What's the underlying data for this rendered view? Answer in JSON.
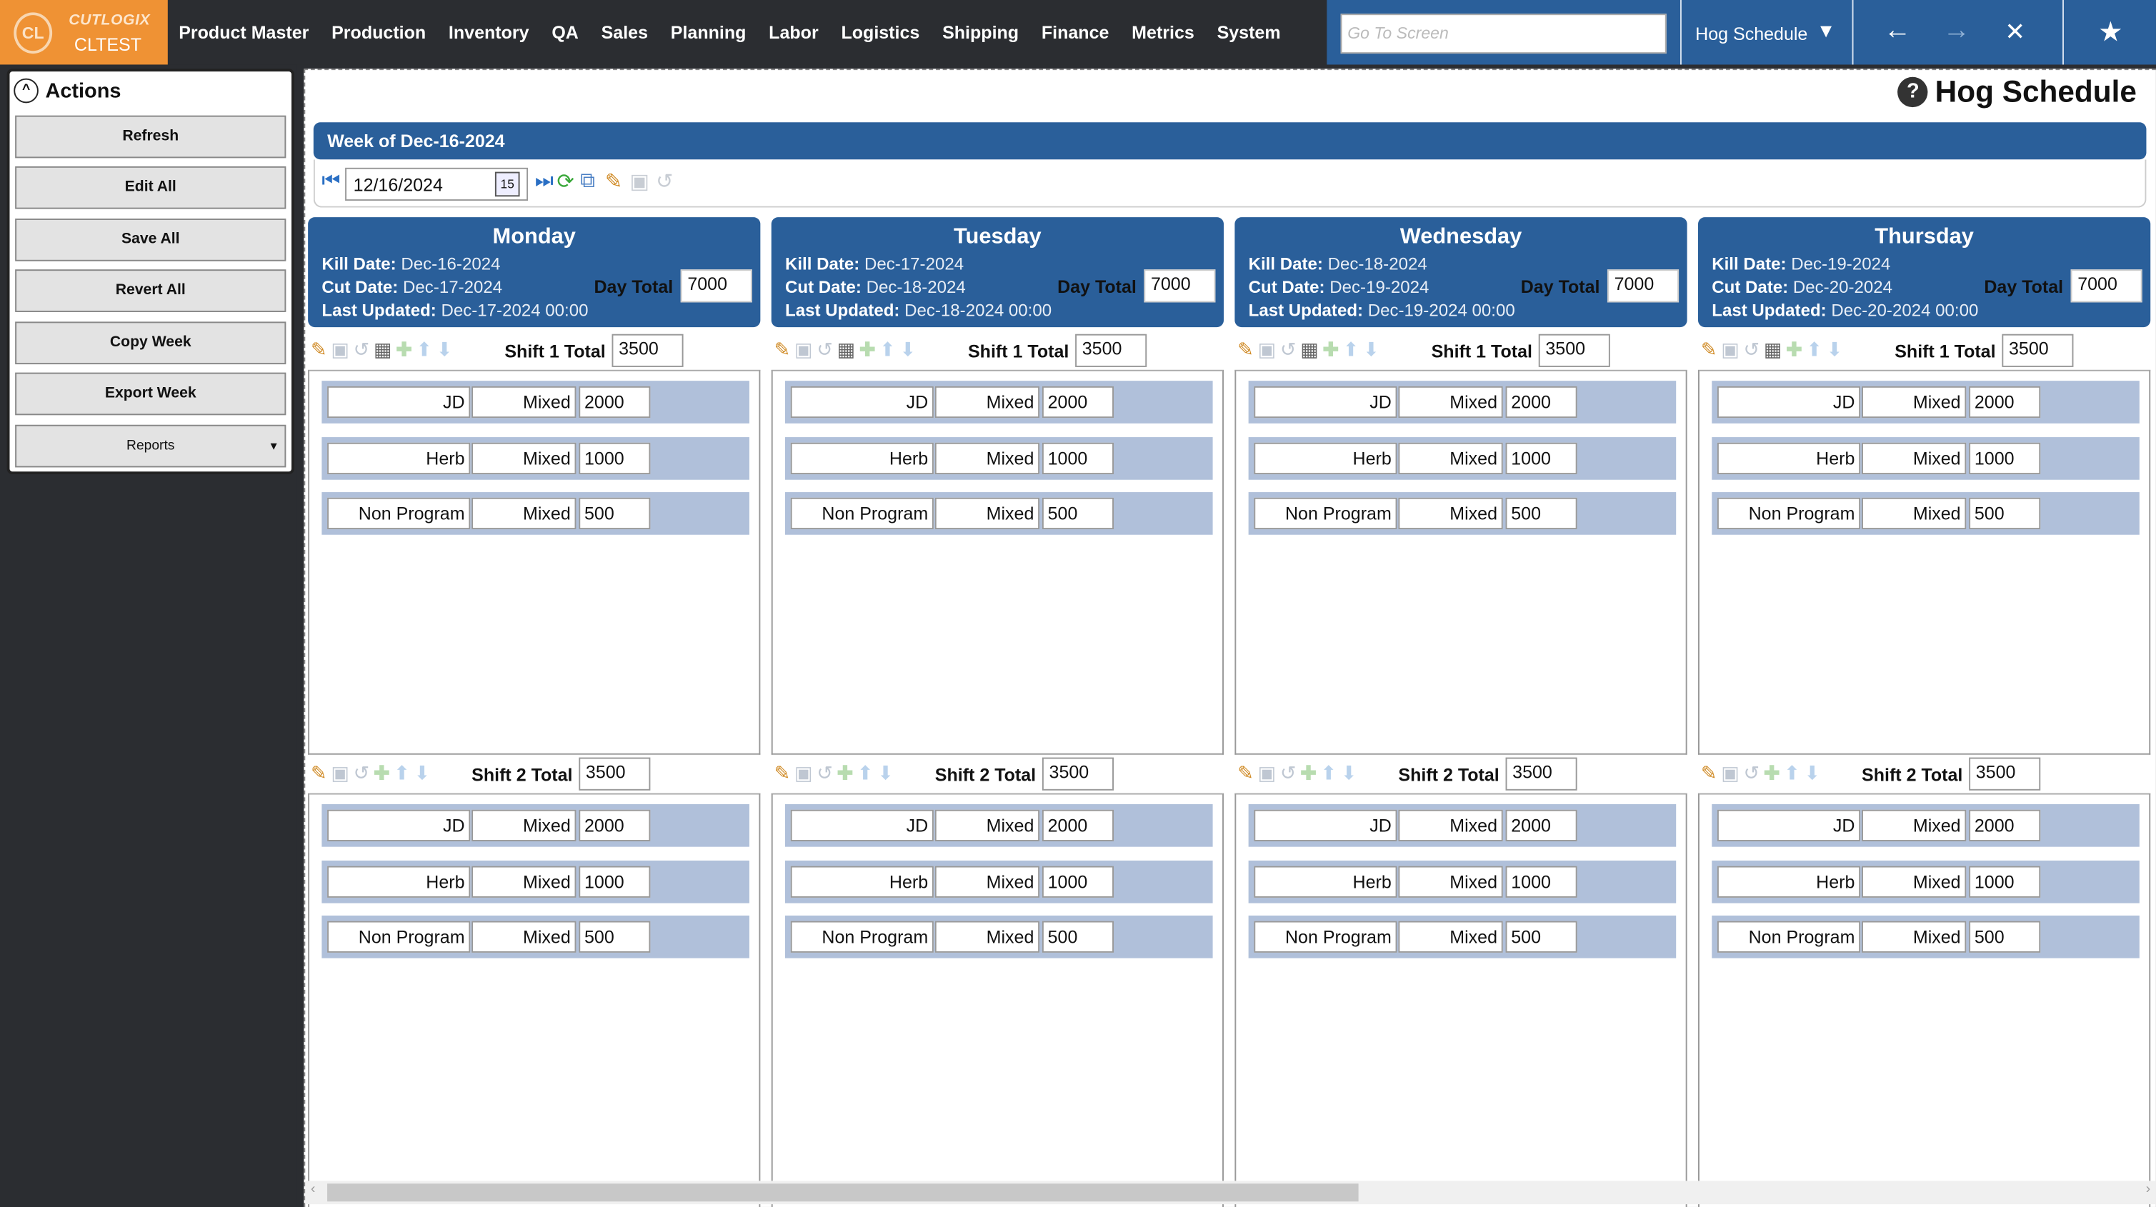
{
  "app": {
    "brand": "CUTLOGIX",
    "environment": "CLTEST"
  },
  "nav": [
    "Product Master",
    "Production",
    "Inventory",
    "QA",
    "Sales",
    "Planning",
    "Labor",
    "Logistics",
    "Shipping",
    "Finance",
    "Metrics",
    "System"
  ],
  "topbar": {
    "goto_placeholder": "Go To Screen",
    "current_screen": "Hog Schedule"
  },
  "sidebar": {
    "title": "Actions",
    "buttons": [
      "Refresh",
      "Edit All",
      "Save All",
      "Revert All",
      "Copy Week",
      "Export Week"
    ],
    "reports_label": "Reports"
  },
  "page": {
    "title": "Hog Schedule",
    "week_label": "Week of Dec-16-2024",
    "date_value": "12/16/2024",
    "calendar_day": "15"
  },
  "labels": {
    "kill": "Kill Date:",
    "cut": "Cut Date:",
    "updated": "Last Updated:",
    "day_total": "Day Total"
  },
  "colors": {
    "brand_orange": "#ef9234",
    "header_blue": "#2a5f9a",
    "row_blue": "#b0c0da",
    "topbar_dark": "#2b2d31"
  },
  "days": [
    {
      "name": "Monday",
      "kill": "Dec-16-2024",
      "cut": "Dec-17-2024",
      "updated": "Dec-17-2024 00:00",
      "day_total": "7000",
      "shifts": [
        {
          "label": "Shift 1 Total",
          "total": "3500",
          "rows": [
            [
              "JD",
              "Mixed",
              "2000"
            ],
            [
              "Herb",
              "Mixed",
              "1000"
            ],
            [
              "Non Program",
              "Mixed",
              "500"
            ]
          ]
        },
        {
          "label": "Shift 2 Total",
          "total": "3500",
          "rows": [
            [
              "JD",
              "Mixed",
              "2000"
            ],
            [
              "Herb",
              "Mixed",
              "1000"
            ],
            [
              "Non Program",
              "Mixed",
              "500"
            ]
          ]
        }
      ]
    },
    {
      "name": "Tuesday",
      "kill": "Dec-17-2024",
      "cut": "Dec-18-2024",
      "updated": "Dec-18-2024 00:00",
      "day_total": "7000",
      "shifts": [
        {
          "label": "Shift 1 Total",
          "total": "3500",
          "rows": [
            [
              "JD",
              "Mixed",
              "2000"
            ],
            [
              "Herb",
              "Mixed",
              "1000"
            ],
            [
              "Non Program",
              "Mixed",
              "500"
            ]
          ]
        },
        {
          "label": "Shift 2 Total",
          "total": "3500",
          "rows": [
            [
              "JD",
              "Mixed",
              "2000"
            ],
            [
              "Herb",
              "Mixed",
              "1000"
            ],
            [
              "Non Program",
              "Mixed",
              "500"
            ]
          ]
        }
      ]
    },
    {
      "name": "Wednesday",
      "kill": "Dec-18-2024",
      "cut": "Dec-19-2024",
      "updated": "Dec-19-2024 00:00",
      "day_total": "7000",
      "shifts": [
        {
          "label": "Shift 1 Total",
          "total": "3500",
          "rows": [
            [
              "JD",
              "Mixed",
              "2000"
            ],
            [
              "Herb",
              "Mixed",
              "1000"
            ],
            [
              "Non Program",
              "Mixed",
              "500"
            ]
          ]
        },
        {
          "label": "Shift 2 Total",
          "total": "3500",
          "rows": [
            [
              "JD",
              "Mixed",
              "2000"
            ],
            [
              "Herb",
              "Mixed",
              "1000"
            ],
            [
              "Non Program",
              "Mixed",
              "500"
            ]
          ]
        }
      ]
    },
    {
      "name": "Thursday",
      "kill": "Dec-19-2024",
      "cut": "Dec-20-2024",
      "updated": "Dec-20-2024 00:00",
      "day_total": "7000",
      "shifts": [
        {
          "label": "Shift 1 Total",
          "total": "3500",
          "rows": [
            [
              "JD",
              "Mixed",
              "2000"
            ],
            [
              "Herb",
              "Mixed",
              "1000"
            ],
            [
              "Non Program",
              "Mixed",
              "500"
            ]
          ]
        },
        {
          "label": "Shift 2 Total",
          "total": "3500",
          "rows": [
            [
              "JD",
              "Mixed",
              "2000"
            ],
            [
              "Herb",
              "Mixed",
              "1000"
            ],
            [
              "Non Program",
              "Mixed",
              "500"
            ]
          ]
        }
      ]
    }
  ]
}
